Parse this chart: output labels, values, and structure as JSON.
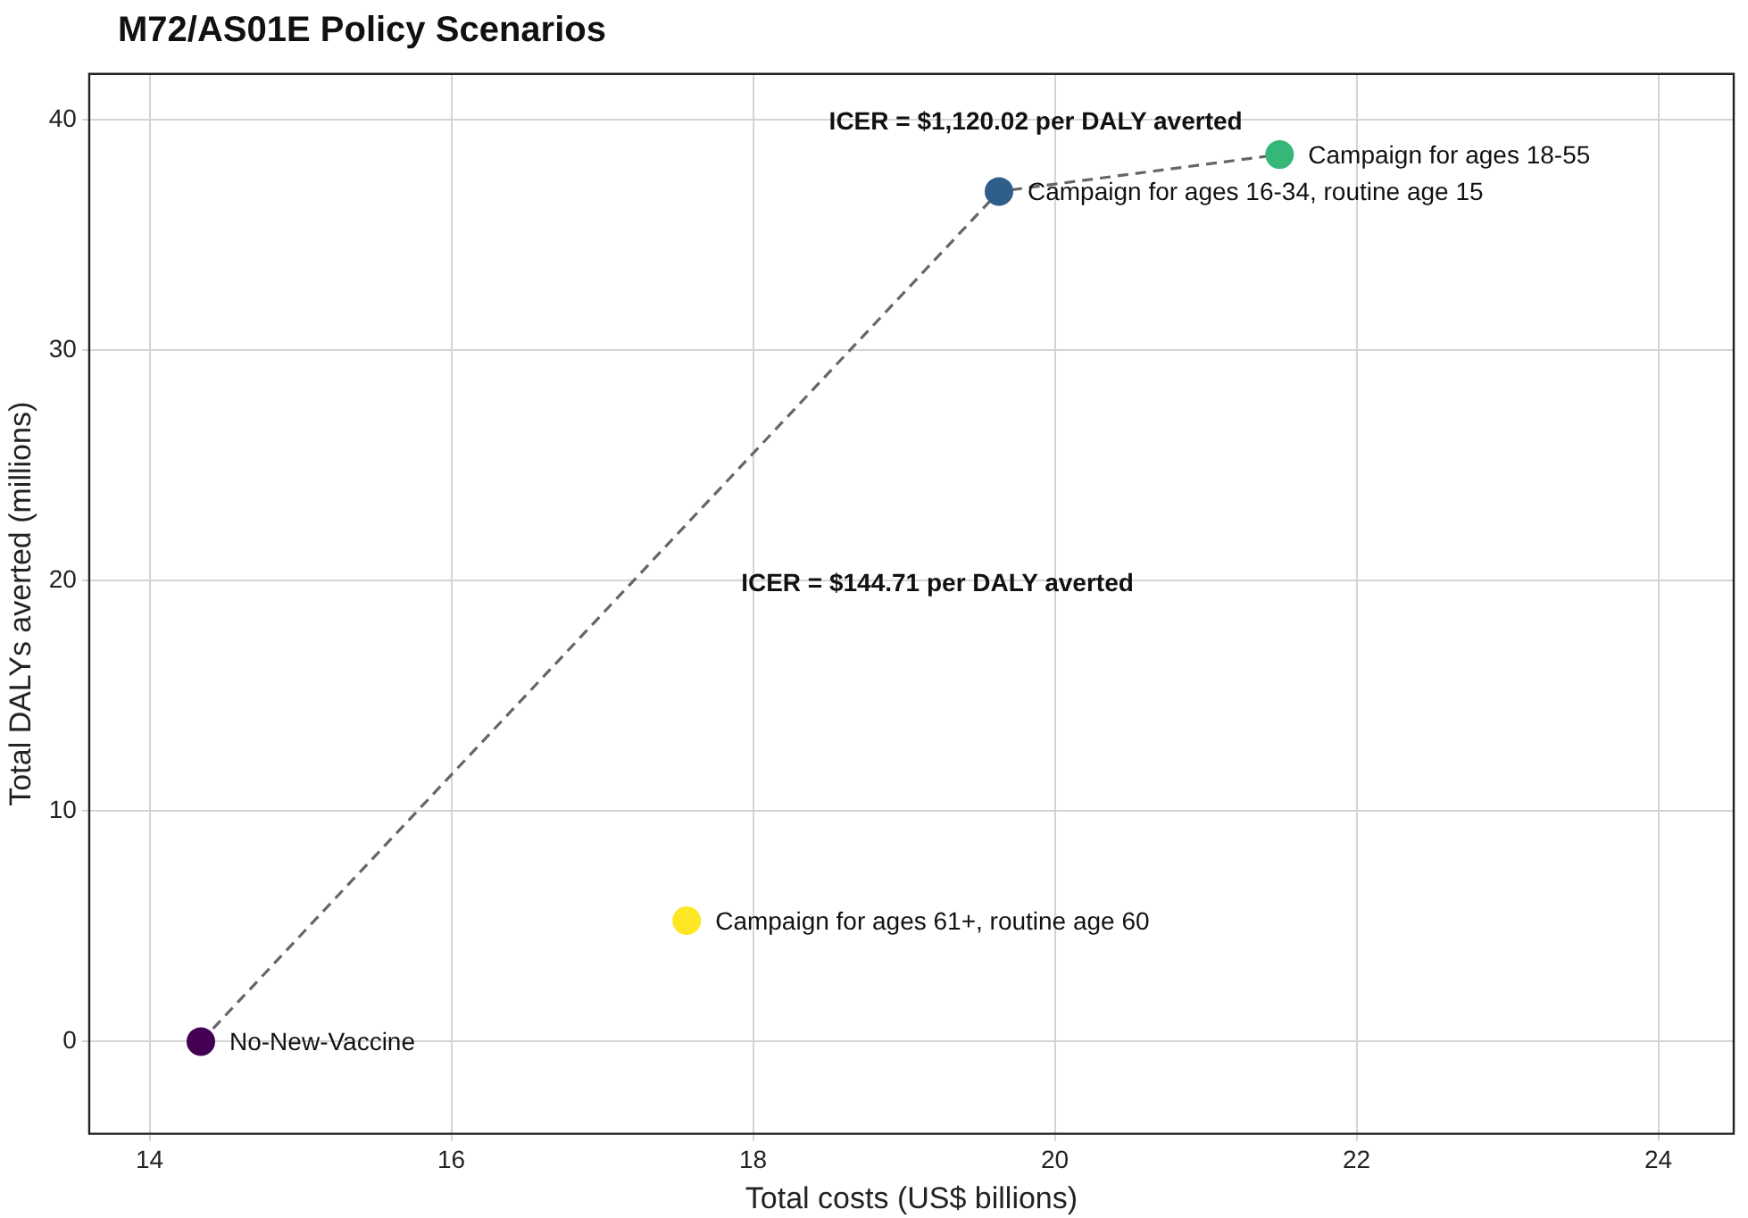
{
  "chart_data": {
    "type": "scatter",
    "title": "M72/AS01E Policy Scenarios",
    "xlabel": "Total costs (US$ billions)",
    "ylabel": "Total DALYs averted (millions)",
    "xlim": [
      13.6,
      24.5
    ],
    "xticks": [
      14,
      16,
      18,
      20,
      22,
      24
    ],
    "ylim": [
      -4,
      42
    ],
    "yticks": [
      0,
      10,
      20,
      30,
      40
    ],
    "grid": true,
    "legend": false,
    "marker": "circle",
    "series": [
      {
        "type": "line",
        "color": "#666666",
        "line_style": "dashed",
        "marker": "none",
        "x": [
          14.34,
          19.63,
          21.49
        ],
        "values": [
          0,
          36.9,
          38.5
        ]
      },
      {
        "name": "No-New-Vaccine",
        "color": "#440154",
        "x": [
          14.34
        ],
        "values": [
          0
        ]
      },
      {
        "name": "Campaign for ages 61+, routine age 60",
        "color": "#fde725",
        "x": [
          17.56
        ],
        "values": [
          5.25
        ]
      },
      {
        "name": "Campaign for ages 16-34, routine age 15",
        "color": "#2f5e8a",
        "x": [
          19.63
        ],
        "values": [
          36.9
        ]
      },
      {
        "name": "Campaign for ages 18-55",
        "color": "#35b779",
        "x": [
          21.49
        ],
        "values": [
          38.5
        ]
      }
    ],
    "annotations": [
      "ICER = $1,120.02 per DALY averted",
      "ICER = $144.71 per DALY averted"
    ]
  }
}
